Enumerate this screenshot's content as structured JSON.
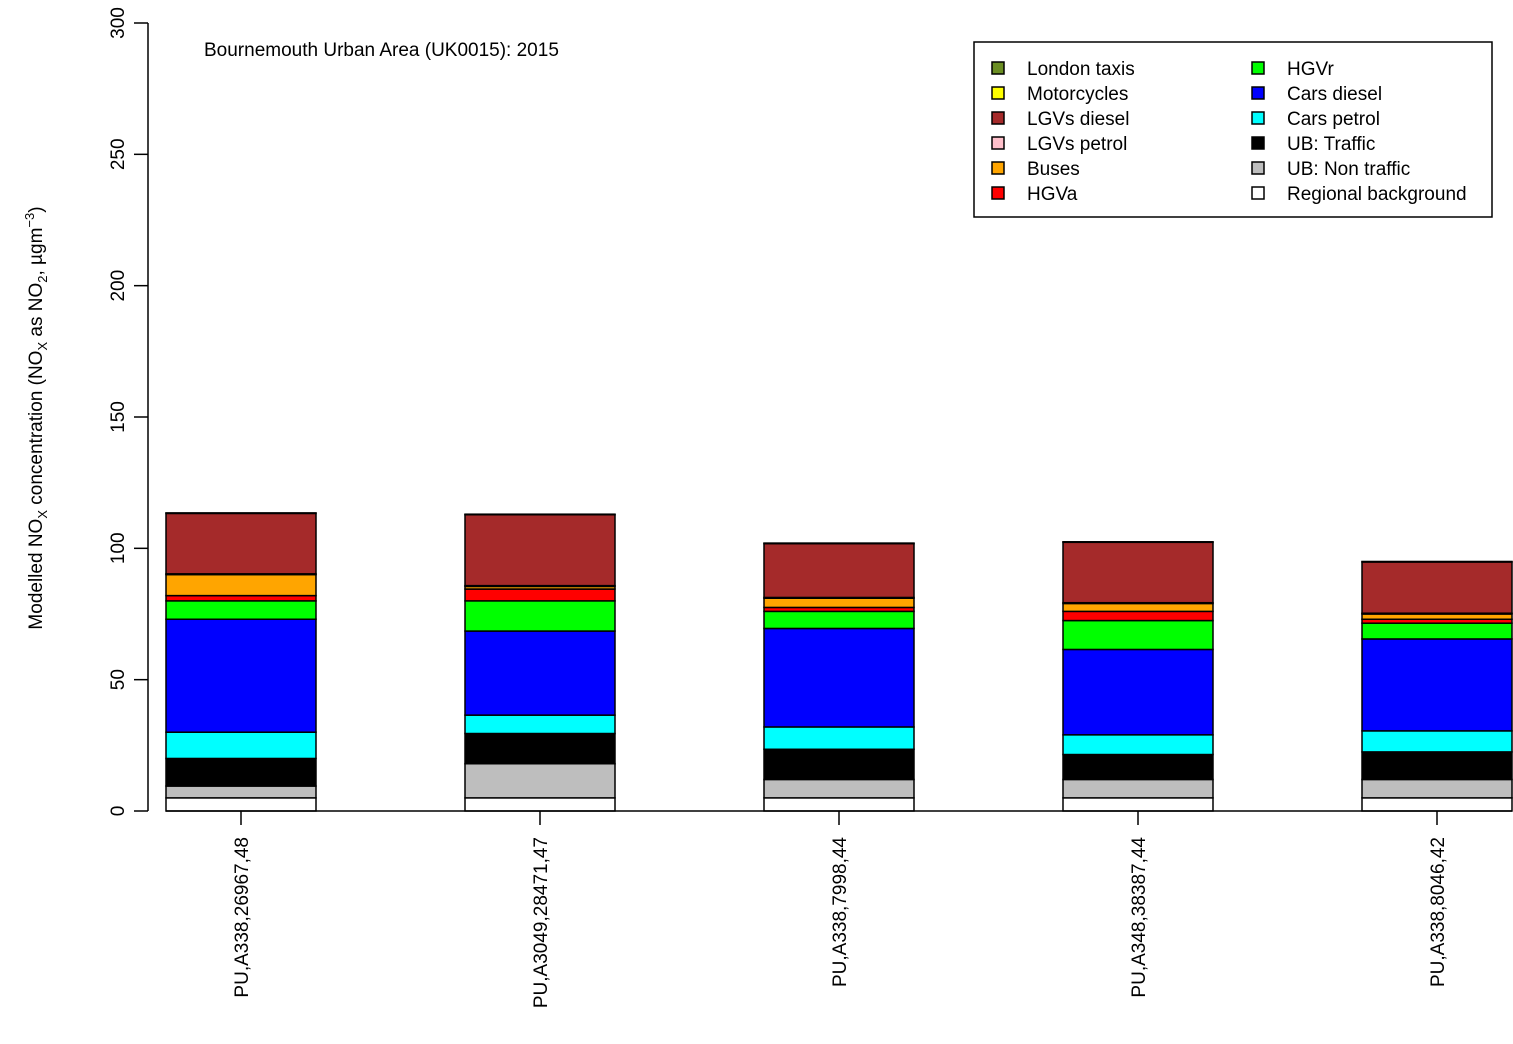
{
  "chart_data": {
    "type": "bar",
    "stacked": true,
    "title": "Bournemouth Urban Area (UK0015): 2015",
    "ylabel": {
      "pre": "Modelled NO",
      "sub1": "X",
      "mid": " concentration (NO",
      "sub2": "X",
      "mid2": " as NO",
      "sub3": "2",
      "mid3": ", µgm",
      "sup": "−3",
      "post": ")"
    },
    "ylim": [
      0,
      300
    ],
    "yticks": [
      0,
      50,
      100,
      150,
      200,
      250,
      300
    ],
    "categories": [
      "PU,A338,26967,48",
      "PU,A3049,28471,47",
      "PU,A338,7998,44",
      "PU,A348,38387,44",
      "PU,A338,8046,42"
    ],
    "series": [
      {
        "name": "Regional background",
        "color": "#ffffff",
        "values": [
          5.0,
          5.0,
          5.0,
          5.0,
          5.0
        ]
      },
      {
        "name": "UB: Non traffic",
        "color": "#bebebe",
        "values": [
          4.5,
          13.0,
          7.0,
          7.0,
          7.0
        ]
      },
      {
        "name": "UB: Traffic",
        "color": "#000000",
        "values": [
          10.5,
          11.5,
          11.5,
          9.5,
          10.5
        ]
      },
      {
        "name": "Cars petrol",
        "color": "#00ffff",
        "values": [
          10.0,
          7.0,
          8.5,
          7.5,
          8.0
        ]
      },
      {
        "name": "Cars diesel",
        "color": "#0000ff",
        "values": [
          43.0,
          32.0,
          37.5,
          32.5,
          35.0
        ]
      },
      {
        "name": "HGVr",
        "color": "#00ff00",
        "values": [
          7.0,
          11.5,
          6.5,
          11.0,
          6.0
        ]
      },
      {
        "name": "HGVa",
        "color": "#ff0000",
        "values": [
          2.0,
          4.5,
          1.5,
          3.5,
          1.5
        ]
      },
      {
        "name": "Buses",
        "color": "#ffa500",
        "values": [
          8.0,
          1.0,
          3.5,
          3.0,
          2.0
        ]
      },
      {
        "name": "LGVs petrol",
        "color": "#ffc0cb",
        "values": [
          0.3,
          0.3,
          0.3,
          0.3,
          0.3
        ]
      },
      {
        "name": "LGVs diesel",
        "color": "#a52a2a",
        "values": [
          23.0,
          27.0,
          20.5,
          23.0,
          19.5
        ]
      },
      {
        "name": "Motorcycles",
        "color": "#ffff00",
        "values": [
          0.2,
          0.2,
          0.2,
          0.2,
          0.2
        ]
      },
      {
        "name": "London taxis",
        "color": "#6b8e23",
        "values": [
          0.0,
          0.0,
          0.0,
          0.0,
          0.0
        ]
      }
    ],
    "legend": {
      "position": "top-right",
      "entries": [
        {
          "label": "London taxis",
          "color": "#6b8e23"
        },
        {
          "label": "Motorcycles",
          "color": "#ffff00"
        },
        {
          "label": "LGVs diesel",
          "color": "#a52a2a"
        },
        {
          "label": "LGVs petrol",
          "color": "#ffc0cb"
        },
        {
          "label": "Buses",
          "color": "#ffa500"
        },
        {
          "label": "HGVa",
          "color": "#ff0000"
        },
        {
          "label": "HGVr",
          "color": "#00ff00"
        },
        {
          "label": "Cars diesel",
          "color": "#0000ff"
        },
        {
          "label": "Cars petrol",
          "color": "#00ffff"
        },
        {
          "label": "UB: Traffic",
          "color": "#000000"
        },
        {
          "label": "UB: Non traffic",
          "color": "#bebebe"
        },
        {
          "label": "Regional background",
          "color": "#ffffff"
        }
      ]
    }
  }
}
